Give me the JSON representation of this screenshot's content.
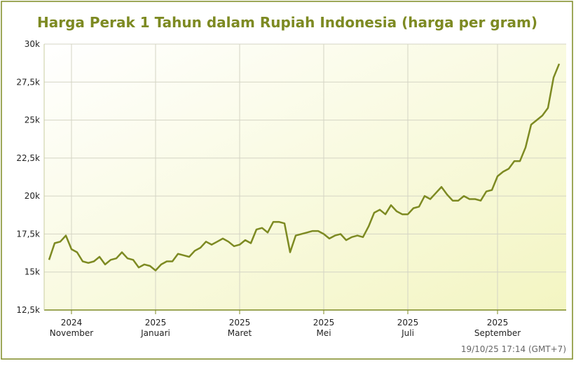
{
  "chart_data": {
    "type": "line",
    "title": "Harga Perak 1 Tahun dalam Rupiah Indonesia (harga per gram)",
    "footnote": "19/10/25 17:14 (GMT+7)",
    "categories": [
      null,
      null,
      null,
      null,
      [
        "2024",
        "November"
      ],
      null,
      null,
      null,
      null,
      null,
      null,
      null,
      null,
      null,
      null,
      null,
      null,
      null,
      null,
      [
        "2025",
        "Januari"
      ],
      null,
      null,
      null,
      null,
      null,
      null,
      null,
      null,
      null,
      null,
      null,
      null,
      null,
      null,
      [
        "2025",
        "Maret"
      ],
      null,
      null,
      null,
      null,
      null,
      null,
      null,
      null,
      null,
      null,
      null,
      null,
      null,
      null,
      [
        "2025",
        "Mei"
      ],
      null,
      null,
      null,
      null,
      null,
      null,
      null,
      null,
      null,
      null,
      null,
      null,
      null,
      null,
      [
        "2025",
        "Juli"
      ],
      null,
      null,
      null,
      null,
      null,
      null,
      null,
      null,
      null,
      null,
      null,
      null,
      null,
      null,
      null,
      [
        "2025",
        "September"
      ],
      null,
      null,
      null,
      null,
      null,
      null,
      null,
      null,
      null,
      null,
      null
    ],
    "values": [
      15800,
      16900,
      17000,
      17400,
      16500,
      16300,
      15700,
      15600,
      15700,
      16000,
      15500,
      15800,
      15900,
      16300,
      15900,
      15800,
      15300,
      15500,
      15400,
      15100,
      15500,
      15700,
      15700,
      16200,
      16100,
      16000,
      16400,
      16600,
      17000,
      16800,
      17000,
      17200,
      17000,
      16700,
      16800,
      17100,
      16900,
      17800,
      17900,
      17600,
      18300,
      18300,
      18200,
      16300,
      17400,
      17500,
      17600,
      17700,
      17700,
      17500,
      17200,
      17400,
      17500,
      17100,
      17300,
      17400,
      17300,
      18000,
      18900,
      19100,
      18800,
      19400,
      19000,
      18800,
      18800,
      19200,
      19300,
      20000,
      19800,
      20200,
      20600,
      20100,
      19700,
      19700,
      20000,
      19800,
      19800,
      19700,
      20300,
      20400,
      21300,
      21600,
      21800,
      22300,
      22300,
      23200,
      24700,
      25000,
      25300,
      25800,
      27800,
      28700
    ],
    "color": "#7d8a22",
    "ylim": [
      12500,
      30000
    ],
    "yticks": [
      {
        "value": 12500,
        "label": "12,5k"
      },
      {
        "value": 15000,
        "label": "15k"
      },
      {
        "value": 17500,
        "label": "17,5k"
      },
      {
        "value": 20000,
        "label": "20k"
      },
      {
        "value": 22500,
        "label": "22,5k"
      },
      {
        "value": 25000,
        "label": "25k"
      },
      {
        "value": 27500,
        "label": "27,5k"
      },
      {
        "value": 30000,
        "label": "30k"
      }
    ],
    "grid": true
  }
}
